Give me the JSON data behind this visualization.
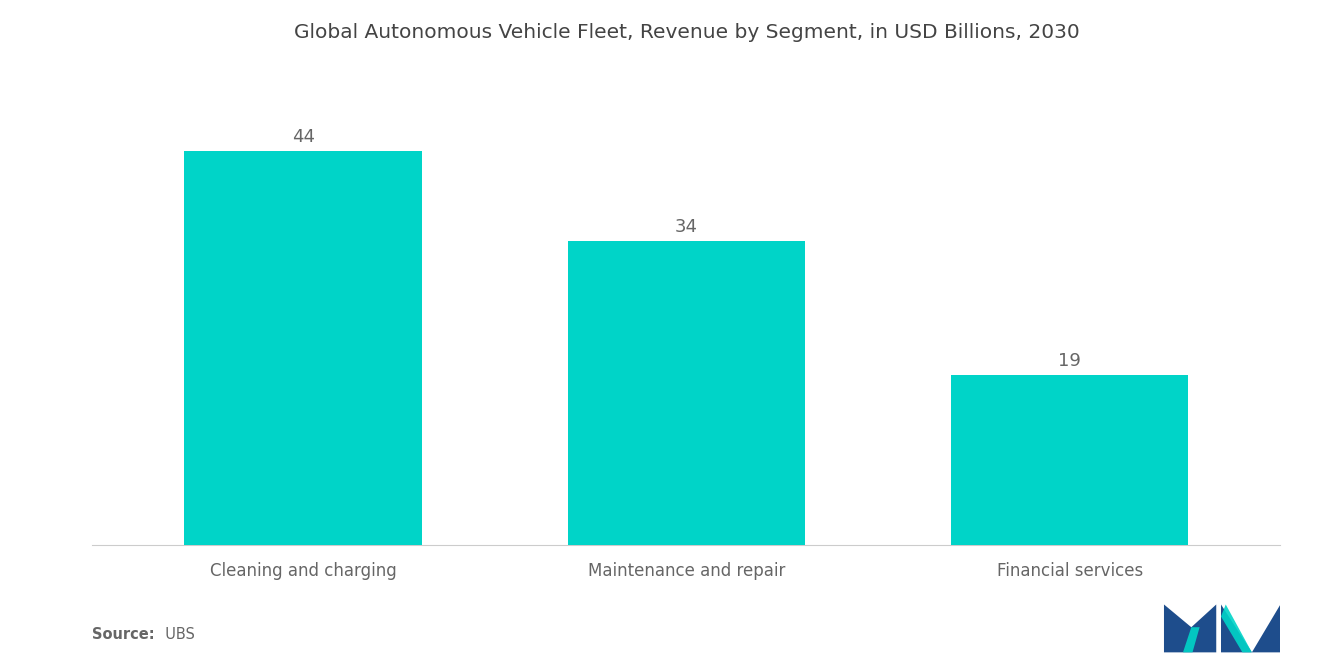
{
  "title": "Global Autonomous Vehicle Fleet, Revenue by Segment, in USD Billions, 2030",
  "categories": [
    "Cleaning and charging",
    "Maintenance and repair",
    "Financial services"
  ],
  "values": [
    44,
    34,
    19
  ],
  "bar_color": "#00D4C8",
  "background_color": "#ffffff",
  "title_fontsize": 14.5,
  "label_fontsize": 12,
  "value_fontsize": 13,
  "source_bold": "Source:",
  "source_normal": "  UBS",
  "ylim": [
    0,
    52
  ],
  "bar_width": 0.62,
  "logo_dark_blue": "#1e4d8c",
  "logo_teal": "#00D4C8"
}
